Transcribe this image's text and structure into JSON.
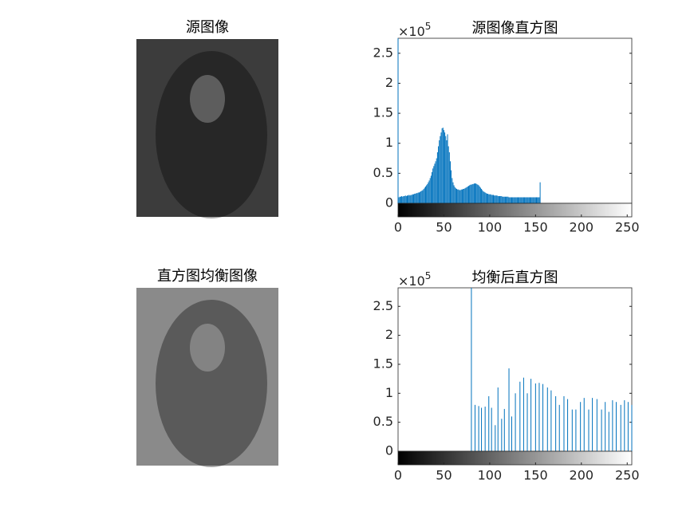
{
  "chart_data": [
    {
      "type": "image",
      "title": "源图像",
      "shade": "#3c3c3c"
    },
    {
      "type": "histogram",
      "title": "源图像直方图",
      "color": "#0072bd",
      "y_multiplier": {
        "base": "×10",
        "exponent": "5"
      },
      "x": [
        0,
        1,
        2,
        3,
        4,
        5,
        6,
        7,
        8,
        9,
        10,
        11,
        12,
        13,
        14,
        15,
        16,
        17,
        18,
        19,
        20,
        21,
        22,
        23,
        24,
        25,
        26,
        27,
        28,
        29,
        30,
        31,
        32,
        33,
        34,
        35,
        36,
        37,
        38,
        39,
        40,
        41,
        42,
        43,
        44,
        45,
        46,
        47,
        48,
        49,
        50,
        51,
        52,
        53,
        54,
        55,
        56,
        57,
        58,
        59,
        60,
        61,
        62,
        63,
        64,
        65,
        66,
        67,
        68,
        69,
        70,
        71,
        72,
        73,
        74,
        75,
        76,
        77,
        78,
        79,
        80,
        81,
        82,
        83,
        84,
        85,
        86,
        87,
        88,
        89,
        90,
        91,
        92,
        93,
        94,
        95,
        96,
        97,
        98,
        99,
        100,
        101,
        102,
        103,
        104,
        105,
        106,
        107,
        108,
        109,
        110,
        111,
        112,
        113,
        114,
        115,
        116,
        117,
        118,
        119,
        120,
        121,
        122,
        123,
        124,
        125,
        126,
        127,
        128,
        129,
        130,
        131,
        132,
        133,
        134,
        135,
        136,
        137,
        138,
        139,
        140,
        141,
        142,
        143,
        144,
        145,
        146,
        147,
        148,
        149,
        150,
        151,
        152,
        153,
        154,
        155
      ],
      "values": [
        275000,
        10000,
        11000,
        11000,
        12000,
        11000,
        12000,
        12000,
        13000,
        12000,
        13000,
        13000,
        14000,
        13000,
        14000,
        14000,
        15000,
        15000,
        16000,
        16000,
        17000,
        17000,
        18000,
        18000,
        19000,
        20000,
        21000,
        22000,
        24000,
        26000,
        28000,
        30000,
        32000,
        35000,
        38000,
        42000,
        46000,
        52000,
        58000,
        62000,
        66000,
        70000,
        75000,
        85000,
        95000,
        105000,
        112000,
        118000,
        125000,
        126000,
        122000,
        118000,
        112000,
        105000,
        115000,
        95000,
        85000,
        70000,
        55000,
        42000,
        35000,
        30000,
        27000,
        25000,
        24000,
        23000,
        23000,
        22000,
        22000,
        23000,
        23000,
        24000,
        24000,
        25000,
        26000,
        27000,
        28000,
        29000,
        30000,
        31000,
        31000,
        32000,
        32000,
        33000,
        33000,
        33000,
        32000,
        31000,
        30000,
        28000,
        26000,
        24000,
        22000,
        20000,
        19000,
        18000,
        17000,
        16000,
        16000,
        15000,
        15000,
        15000,
        14000,
        14000,
        14000,
        13000,
        13000,
        13000,
        13000,
        12000,
        12000,
        12000,
        12000,
        12000,
        11000,
        11000,
        11000,
        11000,
        11000,
        11000,
        11000,
        10000,
        10000,
        10000,
        10000,
        10000,
        10000,
        10000,
        10000,
        10000,
        10000,
        10000,
        10000,
        10000,
        10000,
        10000,
        10000,
        10000,
        10000,
        10000,
        10000,
        10000,
        10000,
        10000,
        10000,
        10000,
        10000,
        10000,
        10000,
        10000,
        10000,
        10000,
        10000,
        10000,
        10000,
        35000
      ],
      "xlim": [
        0,
        255
      ],
      "xticks": [
        0,
        50,
        100,
        150,
        200,
        250
      ],
      "ylim": [
        0,
        275000
      ],
      "yticks": [
        0,
        {
          "value": 50000,
          "label": "0.5"
        },
        {
          "value": 100000,
          "label": "1"
        },
        {
          "value": 150000,
          "label": "1.5"
        },
        {
          "value": 200000,
          "label": "2"
        },
        {
          "value": 250000,
          "label": "2.5"
        }
      ]
    },
    {
      "type": "image",
      "title": "直方图均衡图像",
      "shade": "#8a8a8a"
    },
    {
      "type": "histogram",
      "title": "均衡后直方图",
      "color": "#0072bd",
      "y_multiplier": {
        "base": "×10",
        "exponent": "5"
      },
      "x": [
        80,
        84,
        88,
        91,
        95,
        99,
        102,
        106,
        109,
        113,
        116,
        121,
        124,
        128,
        133,
        137,
        141,
        145,
        150,
        154,
        158,
        163,
        167,
        172,
        176,
        181,
        185,
        190,
        194,
        199,
        203,
        208,
        212,
        217,
        222,
        226,
        230,
        234,
        238,
        243,
        247,
        251,
        255
      ],
      "values": [
        282000,
        80000,
        78000,
        75000,
        77000,
        95000,
        75000,
        45000,
        110000,
        56000,
        73000,
        143000,
        60000,
        100000,
        120000,
        127000,
        100000,
        125000,
        117000,
        118000,
        116000,
        110000,
        105000,
        95000,
        80000,
        95000,
        90000,
        72000,
        72000,
        85000,
        92000,
        72000,
        92000,
        90000,
        72000,
        85000,
        68000,
        88000,
        85000,
        80000,
        88000,
        85000,
        80000
      ],
      "xlim": [
        0,
        255
      ],
      "xticks": [
        0,
        50,
        100,
        150,
        200,
        250
      ],
      "ylim": [
        0,
        282000
      ],
      "yticks": [
        0,
        {
          "value": 50000,
          "label": "0.5"
        },
        {
          "value": 100000,
          "label": "1"
        },
        {
          "value": 150000,
          "label": "1.5"
        },
        {
          "value": 200000,
          "label": "2"
        },
        {
          "value": 250000,
          "label": "2.5"
        }
      ]
    }
  ]
}
